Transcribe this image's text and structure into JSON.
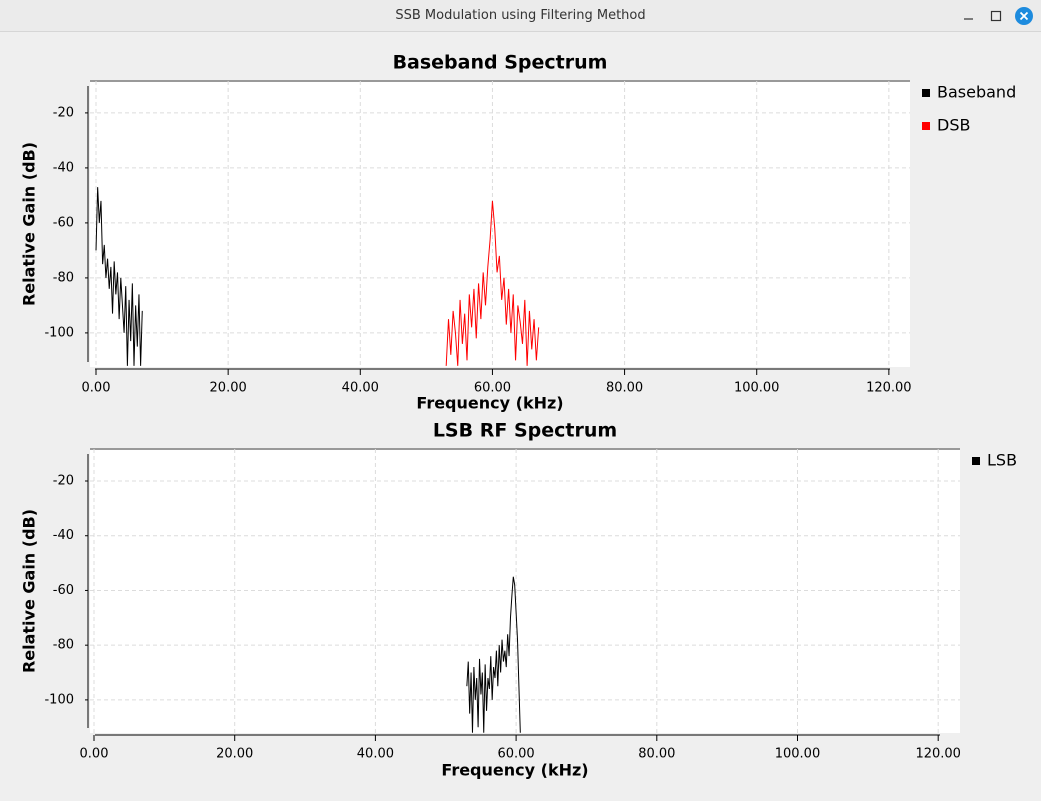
{
  "window": {
    "title": "SSB Modulation using Filtering Method"
  },
  "chart_data": [
    {
      "type": "line",
      "title": "Baseband Spectrum",
      "x_label": "Frequency (kHz)",
      "y_label": "Relative Gain (dB)",
      "xlim": [
        -0.91,
        123.2
      ],
      "ylim": [
        -112.4,
        -8.4
      ],
      "xticks": [
        {
          "value": 0,
          "label": "0.00"
        },
        {
          "value": 20,
          "label": "20.00"
        },
        {
          "value": 40,
          "label": "40.00"
        },
        {
          "value": 60,
          "label": "60.00"
        },
        {
          "value": 80,
          "label": "80.00"
        },
        {
          "value": 100,
          "label": "100.00"
        },
        {
          "value": 120,
          "label": "120.00"
        }
      ],
      "yticks": [
        -20,
        -40,
        -60,
        -80,
        -100
      ],
      "grid": true,
      "series": [
        {
          "name": "Baseband",
          "color": "#000000",
          "x": [
            0,
            0.25,
            0.5,
            0.75,
            1.0,
            1.25,
            1.5,
            1.75,
            2.0,
            2.25,
            2.5,
            2.75,
            3.0,
            3.25,
            3.5,
            3.75,
            4.0,
            4.25,
            4.5,
            4.75,
            5.0,
            5.25,
            5.5,
            5.75,
            6.0,
            6.25,
            6.5,
            6.75,
            7.0
          ],
          "values": [
            -70,
            -47,
            -60,
            -52,
            -75,
            -68,
            -80,
            -73,
            -84,
            -76,
            -93,
            -74,
            -86,
            -78,
            -95,
            -80,
            -90,
            -100,
            -83,
            -112,
            -88,
            -103,
            -82,
            -112,
            -90,
            -105,
            -86,
            -112,
            -92
          ]
        },
        {
          "name": "DSB",
          "color": "#ff0000",
          "x": [
            53,
            53.35,
            53.7,
            54.05,
            54.4,
            54.75,
            55.1,
            55.45,
            55.8,
            56.15,
            56.5,
            56.85,
            57.2,
            57.55,
            57.9,
            58.25,
            58.6,
            58.95,
            59.3,
            59.65,
            60,
            60.35,
            60.7,
            61.05,
            61.4,
            61.75,
            62.1,
            62.45,
            62.8,
            63.15,
            63.5,
            63.85,
            64.2,
            64.55,
            64.9,
            65.25,
            65.6,
            65.95,
            66.3,
            66.65,
            67
          ],
          "values": [
            -112,
            -95,
            -108,
            -92,
            -100,
            -112,
            -88,
            -104,
            -93,
            -110,
            -86,
            -98,
            -84,
            -102,
            -82,
            -95,
            -78,
            -90,
            -76,
            -66,
            -52,
            -62,
            -78,
            -72,
            -88,
            -80,
            -97,
            -84,
            -100,
            -86,
            -110,
            -90,
            -96,
            -104,
            -88,
            -112,
            -92,
            -106,
            -95,
            -110,
            -98
          ]
        }
      ]
    },
    {
      "type": "line",
      "title": "LSB RF Spectrum",
      "x_label": "Frequency (kHz)",
      "y_label": "Relative Gain (dB)",
      "xlim": [
        -0.57,
        123.1
      ],
      "ylim": [
        -112.1,
        -8.3
      ],
      "xticks": [
        {
          "value": 0,
          "label": "0.00"
        },
        {
          "value": 20,
          "label": "20.00"
        },
        {
          "value": 40,
          "label": "40.00"
        },
        {
          "value": 60,
          "label": "60.00"
        },
        {
          "value": 80,
          "label": "80.00"
        },
        {
          "value": 100,
          "label": "100.00"
        },
        {
          "value": 120,
          "label": "120.00"
        }
      ],
      "yticks": [
        -20,
        -40,
        -60,
        -80,
        -100
      ],
      "grid": true,
      "series": [
        {
          "name": "LSB",
          "color": "#000000",
          "x": [
            53,
            53.2,
            53.4,
            53.6,
            53.8,
            54,
            54.2,
            54.4,
            54.6,
            54.8,
            55,
            55.2,
            55.4,
            55.6,
            55.8,
            56,
            56.2,
            56.4,
            56.6,
            56.8,
            57,
            57.2,
            57.4,
            57.6,
            57.8,
            58,
            58.2,
            58.4,
            58.6,
            58.8,
            59,
            59.2,
            59.4,
            59.6,
            59.8,
            60,
            60.2,
            60.4,
            60.6
          ],
          "values": [
            -95,
            -86,
            -105,
            -90,
            -112,
            -88,
            -100,
            -92,
            -110,
            -85,
            -98,
            -90,
            -112,
            -87,
            -104,
            -92,
            -96,
            -84,
            -100,
            -88,
            -92,
            -82,
            -95,
            -80,
            -90,
            -78,
            -86,
            -82,
            -88,
            -76,
            -84,
            -70,
            -62,
            -55,
            -58,
            -68,
            -78,
            -95,
            -112
          ]
        }
      ]
    }
  ]
}
